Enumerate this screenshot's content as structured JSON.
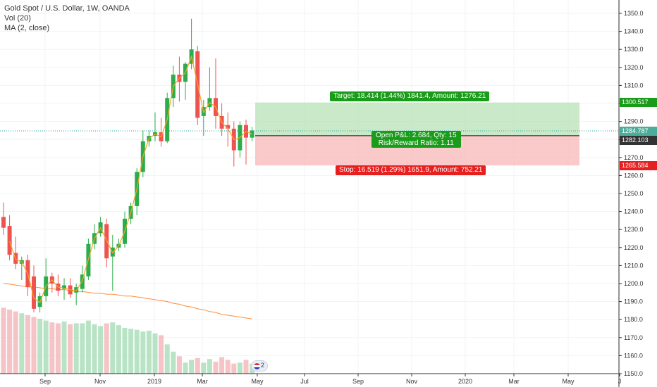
{
  "header": {
    "title": "Gold Spot / U.S. Dollar, 1W, OANDA",
    "indicator_vol": "Vol (20)",
    "indicator_ma": "MA (2, close)"
  },
  "position": {
    "target_label": "Target: 18.414 (1.44%) 1841.4, Amount: 1276.21",
    "stop_label": "Stop: 16.519 (1.29%) 1651.9, Amount: 752.21",
    "pnl_label": "Open P&L: 2.684, Qty: 15",
    "rr_label": "Risk/Reward Ratio: 1.11",
    "entry": 1282.103,
    "target": 1300.517,
    "stop": 1265.584,
    "current": 1284.787
  },
  "price_labels": {
    "target": "1300.517",
    "current": "1284.787",
    "entry": "1282.103",
    "stop": "1265.584"
  },
  "event_badge": "2",
  "colors": {
    "up": "#26a69a",
    "up_strong": "#2eac4b",
    "down": "#ef5350",
    "ma": "#f5a623",
    "vol_ma": "#ff8c3a",
    "target_zone": "#b7e2b7",
    "stop_zone": "#f8b7b7",
    "entry_line": "#111111",
    "current_line": "#26a69a"
  },
  "chart_data": {
    "type": "candlestick",
    "title": "Gold Spot / U.S. Dollar, 1W, OANDA",
    "ylim": [
      1150,
      1355
    ],
    "y_ticks": [
      1150,
      1160,
      1170,
      1180,
      1190,
      1200,
      1210,
      1220,
      1230,
      1240,
      1250,
      1260,
      1270,
      1280,
      1290,
      1300,
      1310,
      1320,
      1330,
      1340,
      1350
    ],
    "x_ticks": [
      "Sep",
      "Nov",
      "2019",
      "Mar",
      "May",
      "Jul",
      "Sep",
      "Nov",
      "2020",
      "Mar",
      "May",
      "J"
    ],
    "candles": [
      {
        "o": 1237,
        "h": 1245,
        "l": 1227,
        "c": 1231
      },
      {
        "o": 1232,
        "h": 1238,
        "l": 1213,
        "c": 1216
      },
      {
        "o": 1217,
        "h": 1226,
        "l": 1208,
        "c": 1211
      },
      {
        "o": 1211,
        "h": 1215,
        "l": 1202,
        "c": 1213
      },
      {
        "o": 1213,
        "h": 1216,
        "l": 1193,
        "c": 1198
      },
      {
        "o": 1204,
        "h": 1210,
        "l": 1184,
        "c": 1186
      },
      {
        "o": 1187,
        "h": 1195,
        "l": 1184,
        "c": 1193
      },
      {
        "o": 1193,
        "h": 1214,
        "l": 1190,
        "c": 1204
      },
      {
        "o": 1204,
        "h": 1206,
        "l": 1195,
        "c": 1200
      },
      {
        "o": 1200,
        "h": 1205,
        "l": 1193,
        "c": 1196
      },
      {
        "o": 1197,
        "h": 1203,
        "l": 1191,
        "c": 1199
      },
      {
        "o": 1199,
        "h": 1203,
        "l": 1192,
        "c": 1194
      },
      {
        "o": 1195,
        "h": 1200,
        "l": 1188,
        "c": 1198
      },
      {
        "o": 1197,
        "h": 1210,
        "l": 1195,
        "c": 1205
      },
      {
        "o": 1204,
        "h": 1225,
        "l": 1202,
        "c": 1222
      },
      {
        "o": 1222,
        "h": 1233,
        "l": 1219,
        "c": 1228
      },
      {
        "o": 1228,
        "h": 1237,
        "l": 1226,
        "c": 1234
      },
      {
        "o": 1233,
        "h": 1236,
        "l": 1209,
        "c": 1214
      },
      {
        "o": 1215,
        "h": 1227,
        "l": 1196,
        "c": 1220
      },
      {
        "o": 1220,
        "h": 1225,
        "l": 1218,
        "c": 1222
      },
      {
        "o": 1222,
        "h": 1240,
        "l": 1220,
        "c": 1236
      },
      {
        "o": 1236,
        "h": 1245,
        "l": 1233,
        "c": 1243
      },
      {
        "o": 1243,
        "h": 1264,
        "l": 1238,
        "c": 1262
      },
      {
        "o": 1262,
        "h": 1285,
        "l": 1259,
        "c": 1279
      },
      {
        "o": 1279,
        "h": 1285,
        "l": 1276,
        "c": 1282
      },
      {
        "o": 1282,
        "h": 1295,
        "l": 1279,
        "c": 1284
      },
      {
        "o": 1284,
        "h": 1292,
        "l": 1276,
        "c": 1279
      },
      {
        "o": 1279,
        "h": 1306,
        "l": 1278,
        "c": 1303
      },
      {
        "o": 1303,
        "h": 1321,
        "l": 1298,
        "c": 1316
      },
      {
        "o": 1316,
        "h": 1326,
        "l": 1301,
        "c": 1312
      },
      {
        "o": 1312,
        "h": 1323,
        "l": 1302,
        "c": 1322
      },
      {
        "o": 1322,
        "h": 1347,
        "l": 1319,
        "c": 1330
      },
      {
        "o": 1329,
        "h": 1332,
        "l": 1288,
        "c": 1292
      },
      {
        "o": 1293,
        "h": 1302,
        "l": 1282,
        "c": 1298
      },
      {
        "o": 1298,
        "h": 1320,
        "l": 1296,
        "c": 1303
      },
      {
        "o": 1303,
        "h": 1325,
        "l": 1286,
        "c": 1293
      },
      {
        "o": 1293,
        "h": 1300,
        "l": 1282,
        "c": 1286
      },
      {
        "o": 1288,
        "h": 1295,
        "l": 1276,
        "c": 1286
      },
      {
        "o": 1286,
        "h": 1290,
        "l": 1265,
        "c": 1274
      },
      {
        "o": 1274,
        "h": 1290,
        "l": 1270,
        "c": 1288
      },
      {
        "o": 1288,
        "h": 1291,
        "l": 1266,
        "c": 1281
      },
      {
        "o": 1281,
        "h": 1287,
        "l": 1279,
        "c": 1285
      }
    ],
    "volume": [
      0.72,
      0.7,
      0.68,
      0.66,
      0.64,
      0.62,
      0.6,
      0.58,
      0.56,
      0.55,
      0.57,
      0.54,
      0.55,
      0.55,
      0.58,
      0.54,
      0.52,
      0.55,
      0.56,
      0.53,
      0.5,
      0.49,
      0.48,
      0.46,
      0.47,
      0.44,
      0.42,
      0.32,
      0.24,
      0.19,
      0.12,
      0.15,
      0.17,
      0.12,
      0.16,
      0.13,
      0.18,
      0.15,
      0.11,
      0.12,
      0.15,
      0.11
    ],
    "vol_ma": [
      0.45,
      0.44,
      0.43,
      0.42,
      0.41,
      0.41,
      0.4,
      0.39,
      0.39,
      0.38,
      0.38,
      0.37,
      0.36,
      0.36,
      0.35,
      0.34,
      0.34,
      0.33,
      0.33,
      0.32,
      0.31,
      0.31,
      0.3,
      0.29,
      0.28,
      0.27,
      0.26,
      0.25,
      0.23,
      0.22,
      0.2,
      0.19,
      0.17,
      0.16,
      0.14,
      0.13,
      0.11,
      0.1,
      0.09,
      0.08,
      0.07,
      0.06
    ],
    "projection": {
      "target": 1300.517,
      "entry": 1282.103,
      "stop": 1265.584
    }
  }
}
